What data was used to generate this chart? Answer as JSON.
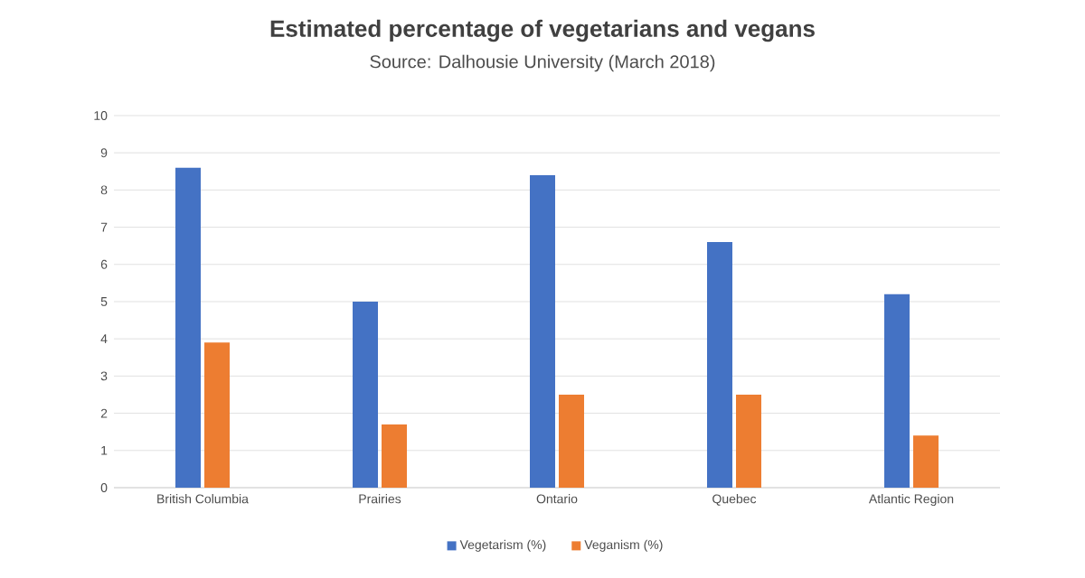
{
  "chart_data": {
    "type": "bar",
    "title": "Estimated percentage of vegetarians and vegans",
    "subtitle": "Source: Dalhousie University (March 2018)",
    "categories": [
      "British Columbia",
      "Prairies",
      "Ontario",
      "Quebec",
      "Atlantic Region"
    ],
    "series": [
      {
        "name": "Vegetarism (%)",
        "color": "#4472c4",
        "values": [
          8.6,
          5.0,
          8.4,
          6.6,
          5.2
        ]
      },
      {
        "name": "Veganism (%)",
        "color": "#ed7d31",
        "values": [
          3.9,
          1.7,
          2.5,
          2.5,
          1.4
        ]
      }
    ],
    "ylim": [
      0,
      10
    ],
    "yticks": [
      0,
      1,
      2,
      3,
      4,
      5,
      6,
      7,
      8,
      9,
      10
    ],
    "grid": "y",
    "legend": "bottom"
  }
}
